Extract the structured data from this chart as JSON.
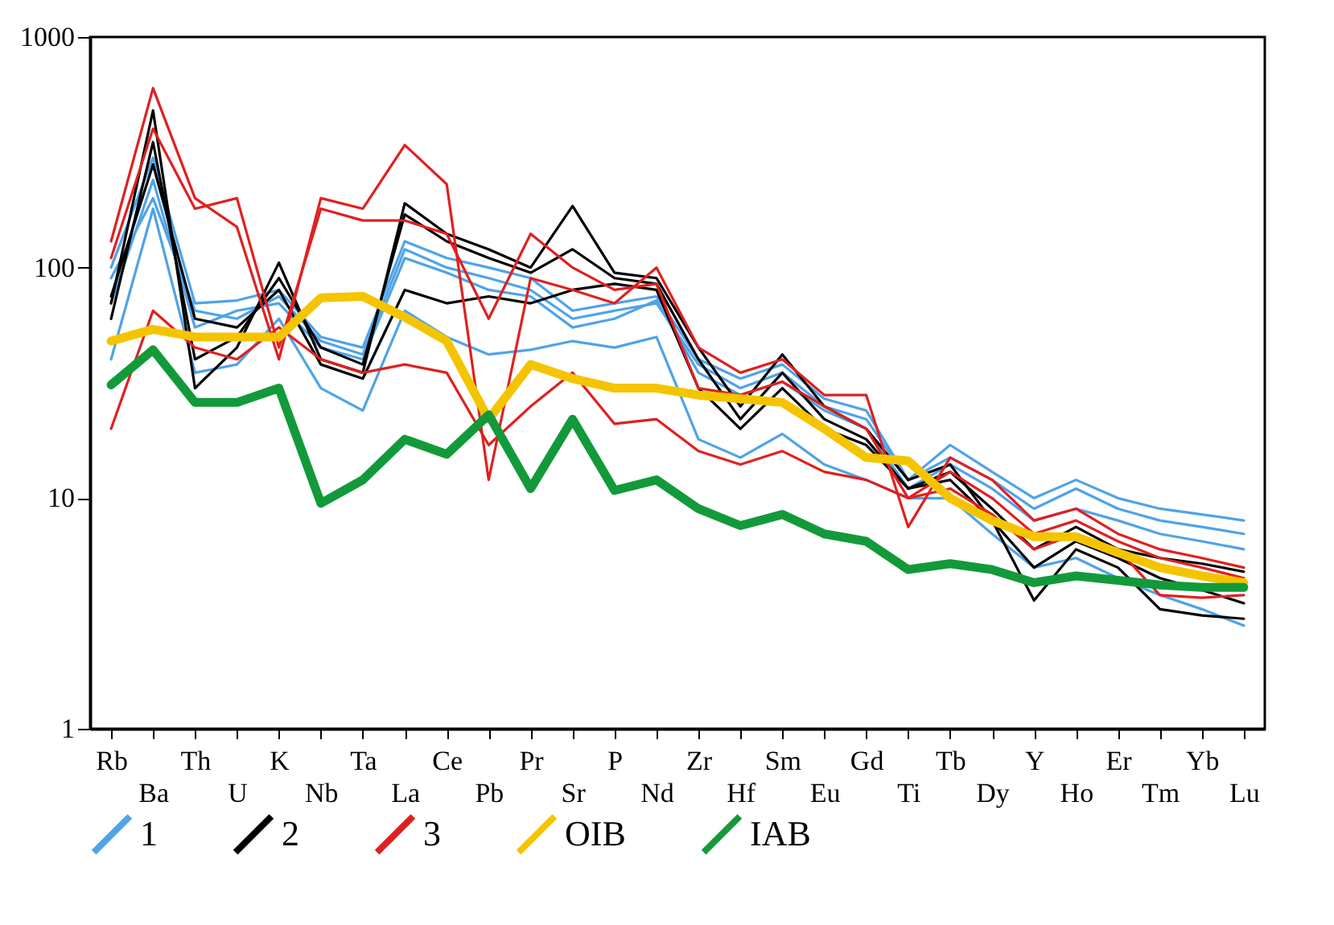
{
  "chart_data": {
    "type": "line",
    "log": "y",
    "ylim": [
      1,
      1000
    ],
    "yticks": [
      1,
      10,
      100,
      1000
    ],
    "grid": false,
    "legend": "bottom",
    "marker": "none",
    "line_style": "solid",
    "categories": [
      "Rb",
      "Ba",
      "Th",
      "U",
      "K",
      "Nb",
      "Ta",
      "La",
      "Ce",
      "Pb",
      "Pr",
      "Sr",
      "P",
      "Nd",
      "Zr",
      "Hf",
      "Sm",
      "Eu",
      "Gd",
      "Ti",
      "Tb",
      "Dy",
      "Y",
      "Ho",
      "Er",
      "Tm",
      "Yb",
      "Lu"
    ],
    "series": [
      {
        "name": "1",
        "color": "#4fa3e8",
        "values": [
          100,
          300,
          70,
          72,
          80,
          50,
          45,
          130,
          110,
          100,
          90,
          65,
          70,
          75,
          40,
          33,
          38,
          27,
          24,
          12,
          17,
          13,
          10,
          12,
          10,
          9,
          8.5,
          8
        ]
      },
      {
        "color": "#4fa3e8",
        "values": [
          90,
          200,
          65,
          60,
          75,
          48,
          42,
          120,
          100,
          90,
          80,
          60,
          65,
          70,
          38,
          30,
          35,
          25,
          22,
          12,
          15,
          12,
          9,
          11,
          9,
          8,
          7.5,
          7
        ]
      },
      {
        "color": "#4fa3e8",
        "values": [
          40,
          180,
          35,
          38,
          60,
          30,
          24,
          65,
          50,
          42,
          44,
          48,
          45,
          50,
          18,
          15,
          19,
          14,
          12,
          10,
          10,
          7,
          5,
          5.5,
          4.5,
          3.8,
          3.3,
          2.8
        ]
      },
      {
        "color": "#4fa3e8",
        "values": [
          70,
          240,
          55,
          65,
          70,
          45,
          40,
          110,
          95,
          80,
          75,
          55,
          60,
          72,
          35,
          28,
          32,
          24,
          20,
          11,
          14,
          11,
          8,
          9,
          8,
          7,
          6.5,
          6
        ]
      },
      {
        "name": "2",
        "color": "#000000",
        "values": [
          70,
          480,
          30,
          45,
          105,
          40,
          35,
          190,
          140,
          120,
          100,
          185,
          95,
          90,
          45,
          25,
          42,
          25,
          20,
          12,
          14,
          8,
          3.6,
          6,
          5,
          3.3,
          3.1,
          3
        ]
      },
      {
        "color": "#000000",
        "values": [
          60,
          350,
          40,
          50,
          90,
          45,
          38,
          170,
          130,
          110,
          95,
          120,
          90,
          85,
          40,
          22,
          35,
          22,
          18,
          11,
          13,
          9,
          6,
          7.5,
          6,
          5.5,
          5.2,
          4.8
        ]
      },
      {
        "color": "#000000",
        "values": [
          75,
          280,
          60,
          55,
          80,
          38,
          33,
          80,
          70,
          75,
          70,
          80,
          85,
          80,
          30,
          20,
          30,
          20,
          17,
          11,
          12,
          8,
          5,
          6.5,
          5.5,
          4.5,
          4,
          3.5
        ]
      },
      {
        "name": "3",
        "color": "#e02020",
        "values": [
          130,
          600,
          200,
          150,
          40,
          200,
          180,
          340,
          230,
          12,
          90,
          80,
          70,
          100,
          45,
          35,
          40,
          28,
          28,
          7.5,
          15,
          12,
          8,
          9,
          7,
          6,
          5.5,
          5
        ]
      },
      {
        "color": "#e02020",
        "values": [
          110,
          400,
          180,
          200,
          45,
          180,
          160,
          160,
          140,
          60,
          140,
          100,
          80,
          85,
          30,
          28,
          32,
          25,
          20,
          10,
          13,
          10,
          7,
          8,
          6.5,
          5.5,
          5,
          4.5
        ]
      },
      {
        "color": "#e02020",
        "values": [
          20,
          65,
          45,
          40,
          55,
          40,
          35,
          38,
          35,
          17,
          25,
          35,
          21,
          22,
          16,
          14,
          16,
          13,
          12,
          10,
          11,
          8.5,
          6,
          7,
          6,
          3.8,
          3.7,
          3.8
        ]
      },
      {
        "name": "OIB",
        "color": "#f5c400",
        "values": [
          48,
          54,
          50,
          50,
          50,
          74,
          75,
          61,
          48,
          22,
          38,
          33,
          30,
          30,
          28,
          27,
          26,
          20,
          15,
          14.5,
          10,
          8,
          6.8,
          6.8,
          5.8,
          5,
          4.6,
          4.3
        ]
      },
      {
        "name": "IAB",
        "color": "#129a3a",
        "values": [
          31,
          44,
          26,
          26,
          30,
          9.5,
          12,
          18,
          15.5,
          23,
          11,
          22,
          10.8,
          12,
          9,
          7.6,
          8.5,
          7,
          6.5,
          4.9,
          5.2,
          4.9,
          4.3,
          4.6,
          4.4,
          4.2,
          4.1,
          4.1
        ]
      }
    ]
  }
}
